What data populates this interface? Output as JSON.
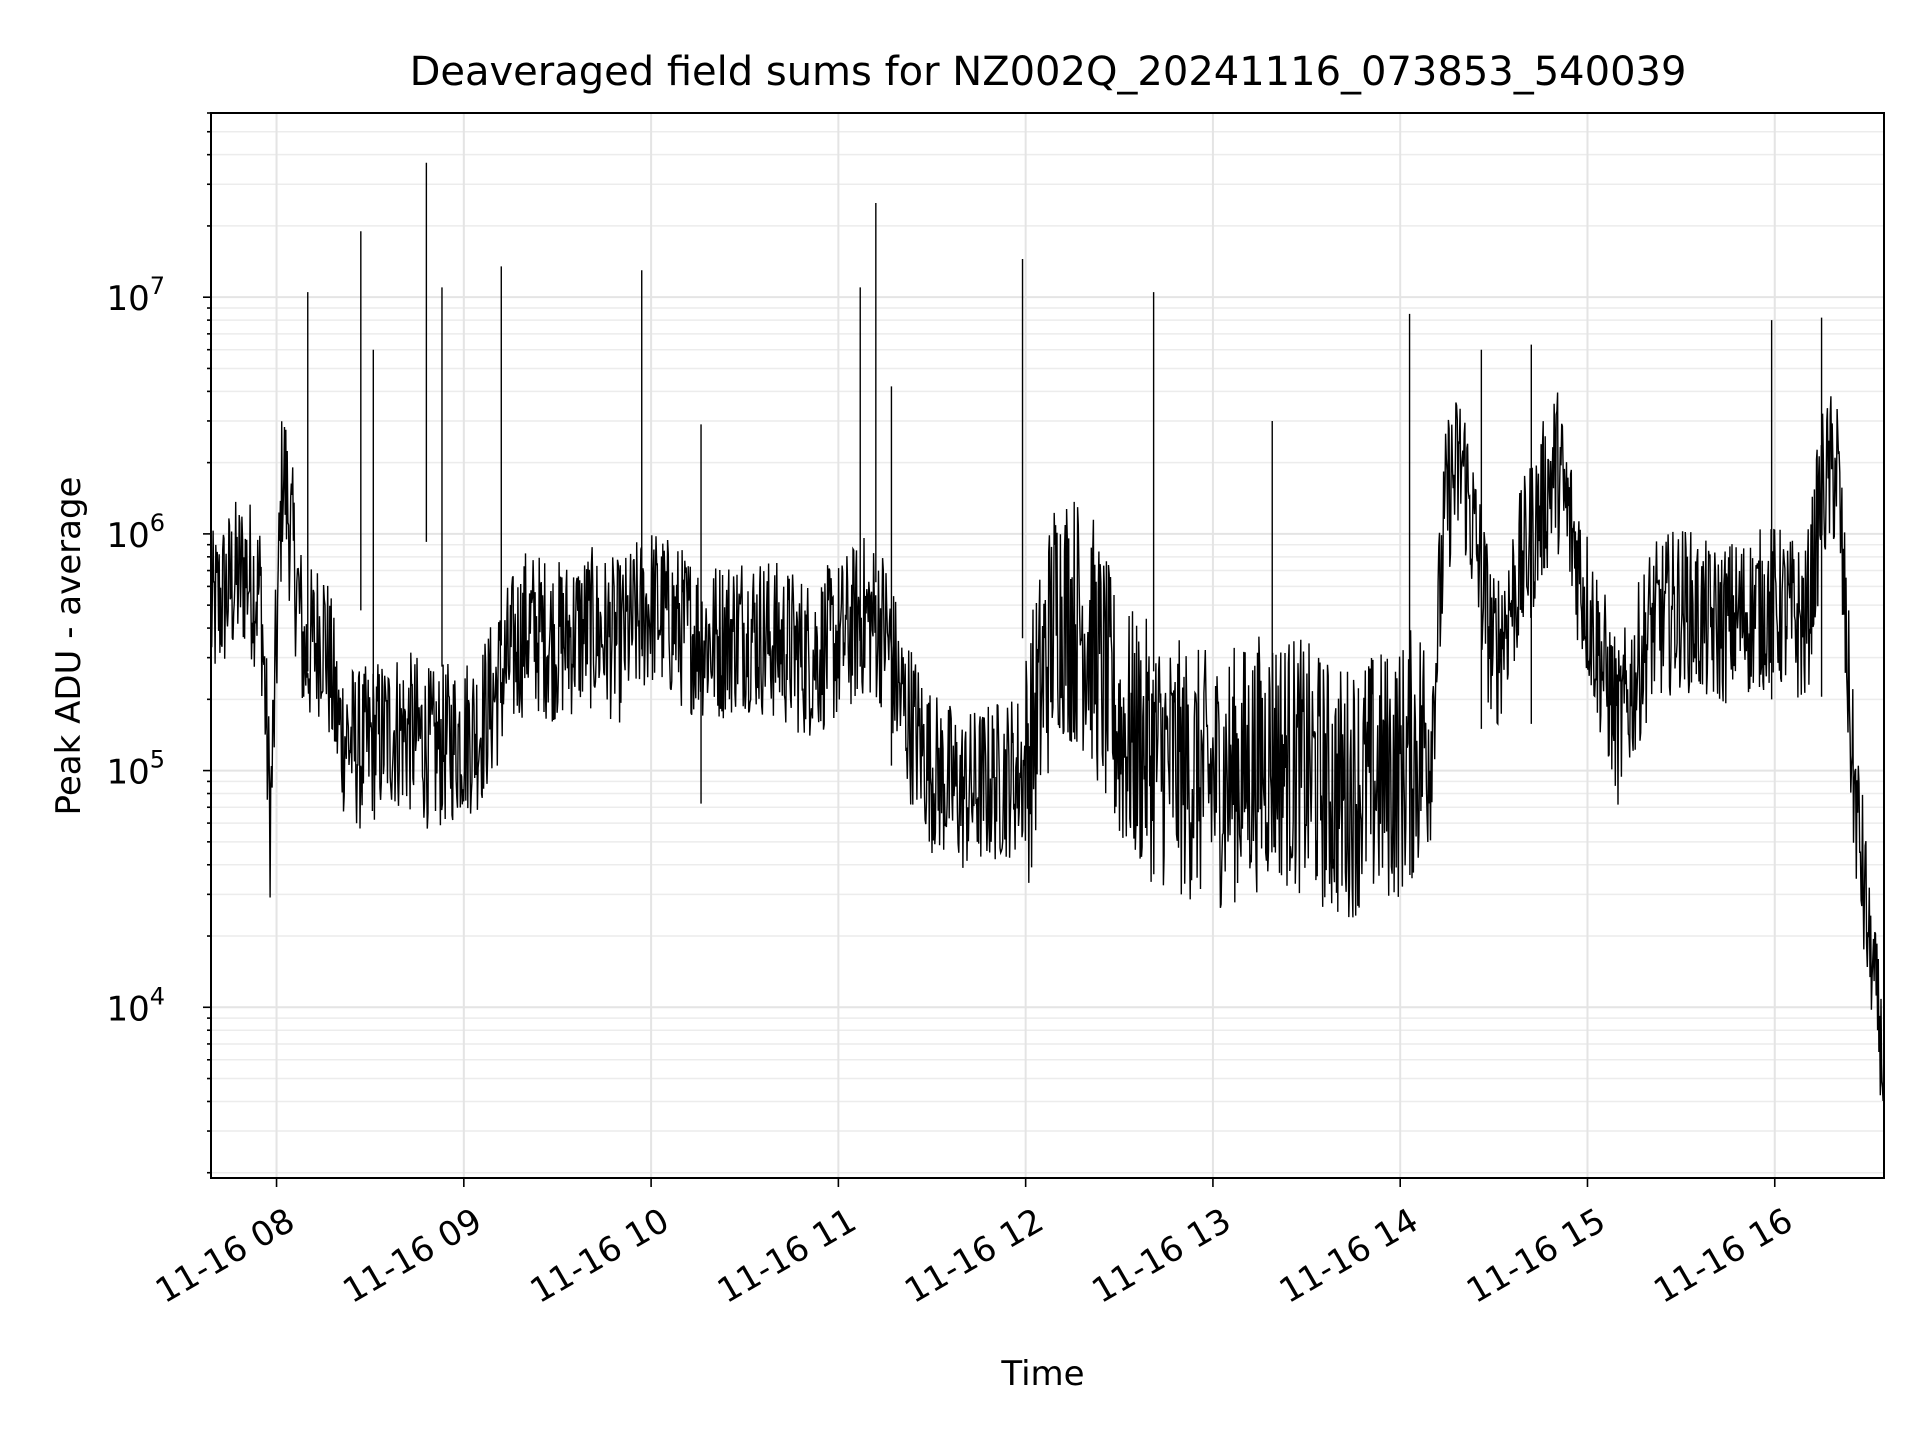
{
  "chart_data": {
    "type": "line",
    "title": "Deaveraged field sums for NZ002Q_20241116_073853_540039",
    "xlabel": "Time",
    "ylabel": "Peak ADU - average",
    "yscale": "log",
    "xlim": [
      "11-16 07:39",
      "11-16 16:35"
    ],
    "ylim": [
      1900,
      60000000
    ],
    "grid": true,
    "x_tick_labels": [
      "11-16 08",
      "11-16 09",
      "11-16 10",
      "11-16 11",
      "11-16 12",
      "11-16 13",
      "11-16 14",
      "11-16 15",
      "11-16 16"
    ],
    "y_tick_labels": [
      {
        "base": "10",
        "exp": "4"
      },
      {
        "base": "10",
        "exp": "5"
      },
      {
        "base": "10",
        "exp": "6"
      },
      {
        "base": "10",
        "exp": "7"
      }
    ],
    "line_color": "#000000",
    "series": [
      {
        "x": [
          "11-16 07:39",
          "11-16 07:45",
          "11-16 07:50",
          "11-16 07:55",
          "11-16 07:58",
          "11-16 08:02",
          "11-16 08:05",
          "11-16 08:09",
          "11-16 08:15",
          "11-16 08:20",
          "11-16 08:27",
          "11-16 08:30",
          "11-16 08:38",
          "11-16 08:45",
          "11-16 08:50",
          "11-16 08:55",
          "11-16 09:00",
          "11-16 09:05",
          "11-16 09:15",
          "11-16 09:20",
          "11-16 09:30",
          "11-16 09:40",
          "11-16 09:50",
          "11-16 10:00",
          "11-16 10:10",
          "11-16 10:20",
          "11-16 10:30",
          "11-16 10:40",
          "11-16 10:50",
          "11-16 11:00",
          "11-16 11:08",
          "11-16 11:15",
          "11-16 11:20",
          "11-16 11:30",
          "11-16 11:40",
          "11-16 11:50",
          "11-16 12:00",
          "11-16 12:10",
          "11-16 12:20",
          "11-16 12:30",
          "11-16 12:40",
          "11-16 12:50",
          "11-16 13:00",
          "11-16 13:10",
          "11-16 13:20",
          "11-16 13:30",
          "11-16 13:40",
          "11-16 13:50",
          "11-16 14:00",
          "11-16 14:10",
          "11-16 14:15",
          "11-16 14:20",
          "11-16 14:30",
          "11-16 14:40",
          "11-16 14:50",
          "11-16 15:00",
          "11-16 15:10",
          "11-16 15:20",
          "11-16 15:30",
          "11-16 15:40",
          "11-16 15:50",
          "11-16 16:00",
          "11-16 16:10",
          "11-16 16:15",
          "11-16 16:20",
          "11-16 16:25",
          "11-16 16:30",
          "11-16 16:33",
          "11-16 16:35"
        ],
        "y": [
          450000,
          600000,
          700000,
          550000,
          60000,
          2000000,
          900000,
          300000,
          400000,
          150000,
          120000,
          130000,
          150000,
          140000,
          120000,
          130000,
          140000,
          150000,
          300000,
          400000,
          350000,
          400000,
          350000,
          500000,
          400000,
          350000,
          400000,
          350000,
          300000,
          350000,
          450000,
          400000,
          200000,
          100000,
          80000,
          90000,
          100000,
          500000,
          400000,
          150000,
          120000,
          100000,
          90000,
          100000,
          120000,
          100000,
          80000,
          90000,
          100000,
          150000,
          1500000,
          2000000,
          300000,
          800000,
          2000000,
          500000,
          150000,
          400000,
          500000,
          400000,
          450000,
          500000,
          400000,
          1500000,
          2000000,
          100000,
          20000,
          10000,
          5000
        ]
      }
    ],
    "spikes": [
      {
        "x": "11-16 08:10",
        "y": 10500000
      },
      {
        "x": "11-16 08:27",
        "y": 19000000
      },
      {
        "x": "11-16 08:31",
        "y": 6000000
      },
      {
        "x": "11-16 08:48",
        "y": 37000000
      },
      {
        "x": "11-16 08:53",
        "y": 11000000
      },
      {
        "x": "11-16 09:12",
        "y": 13500000
      },
      {
        "x": "11-16 09:57",
        "y": 13000000
      },
      {
        "x": "11-16 10:16",
        "y": 2900000
      },
      {
        "x": "11-16 11:07",
        "y": 11000000
      },
      {
        "x": "11-16 11:12",
        "y": 25000000
      },
      {
        "x": "11-16 11:17",
        "y": 4200000
      },
      {
        "x": "11-16 11:59",
        "y": 14500000
      },
      {
        "x": "11-16 12:41",
        "y": 10500000
      },
      {
        "x": "11-16 13:19",
        "y": 3000000
      },
      {
        "x": "11-16 14:03",
        "y": 8500000
      },
      {
        "x": "11-16 14:26",
        "y": 6000000
      },
      {
        "x": "11-16 14:42",
        "y": 6300000
      },
      {
        "x": "11-16 15:59",
        "y": 8000000
      },
      {
        "x": "11-16 16:15",
        "y": 8200000
      }
    ]
  }
}
